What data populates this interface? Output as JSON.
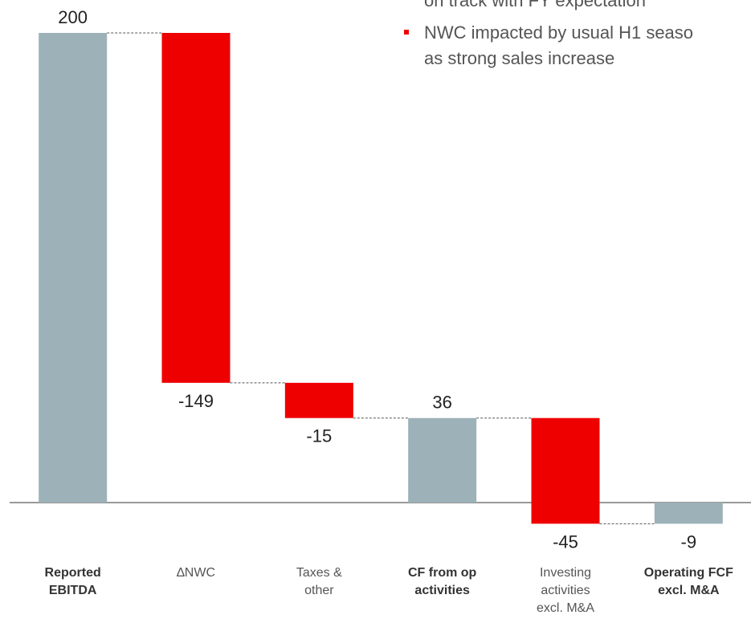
{
  "chart_data": {
    "type": "waterfall",
    "categories": [
      [
        "Reported",
        "EBITDA"
      ],
      [
        "∆NWC"
      ],
      [
        "Taxes &",
        "other"
      ],
      [
        "CF from op",
        "activities"
      ],
      [
        "Investing",
        "activities",
        "excl. M&A"
      ],
      [
        "Operating FCF",
        "excl. M&A"
      ]
    ],
    "values": [
      200,
      -149,
      -15,
      36,
      -45,
      -9
    ],
    "totals": [
      true,
      false,
      false,
      true,
      false,
      true
    ],
    "total_color": "#9db1b8",
    "change_color": "#ee0000",
    "notes": [
      "on track with FY expectation",
      "NWC impacted by usual H1 seaso",
      "as strong sales increase"
    ]
  }
}
